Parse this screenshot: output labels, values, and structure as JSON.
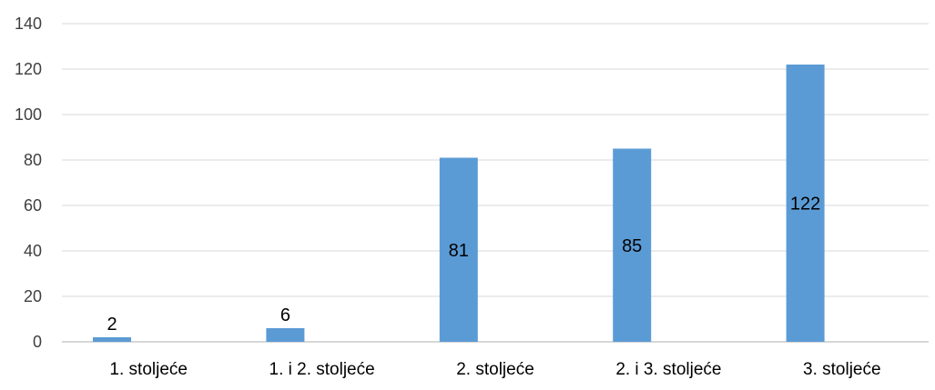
{
  "chart_data": {
    "type": "bar",
    "categories": [
      "1. stoljeće",
      "1. i 2. stoljeće",
      "2. stoljeće",
      "2. i 3. stoljeće",
      "3. stoljeće"
    ],
    "series": [
      {
        "values": [
          2,
          6,
          81,
          85,
          122
        ]
      }
    ],
    "data_labels": [
      "2",
      "6",
      "81",
      "85",
      "122"
    ],
    "ylim": [
      0,
      140
    ],
    "yticks": [
      0,
      20,
      40,
      60,
      80,
      100,
      120,
      140
    ],
    "ytick_labels": [
      "0",
      "20",
      "40",
      "60",
      "80",
      "100",
      "120",
      "140"
    ],
    "title": "",
    "xlabel": "",
    "ylabel": "",
    "grid": true,
    "legend": "none",
    "colors": {
      "bar": "#5b9bd5",
      "grid": "#d9d9d9",
      "axis": "#bfbfbf"
    }
  }
}
